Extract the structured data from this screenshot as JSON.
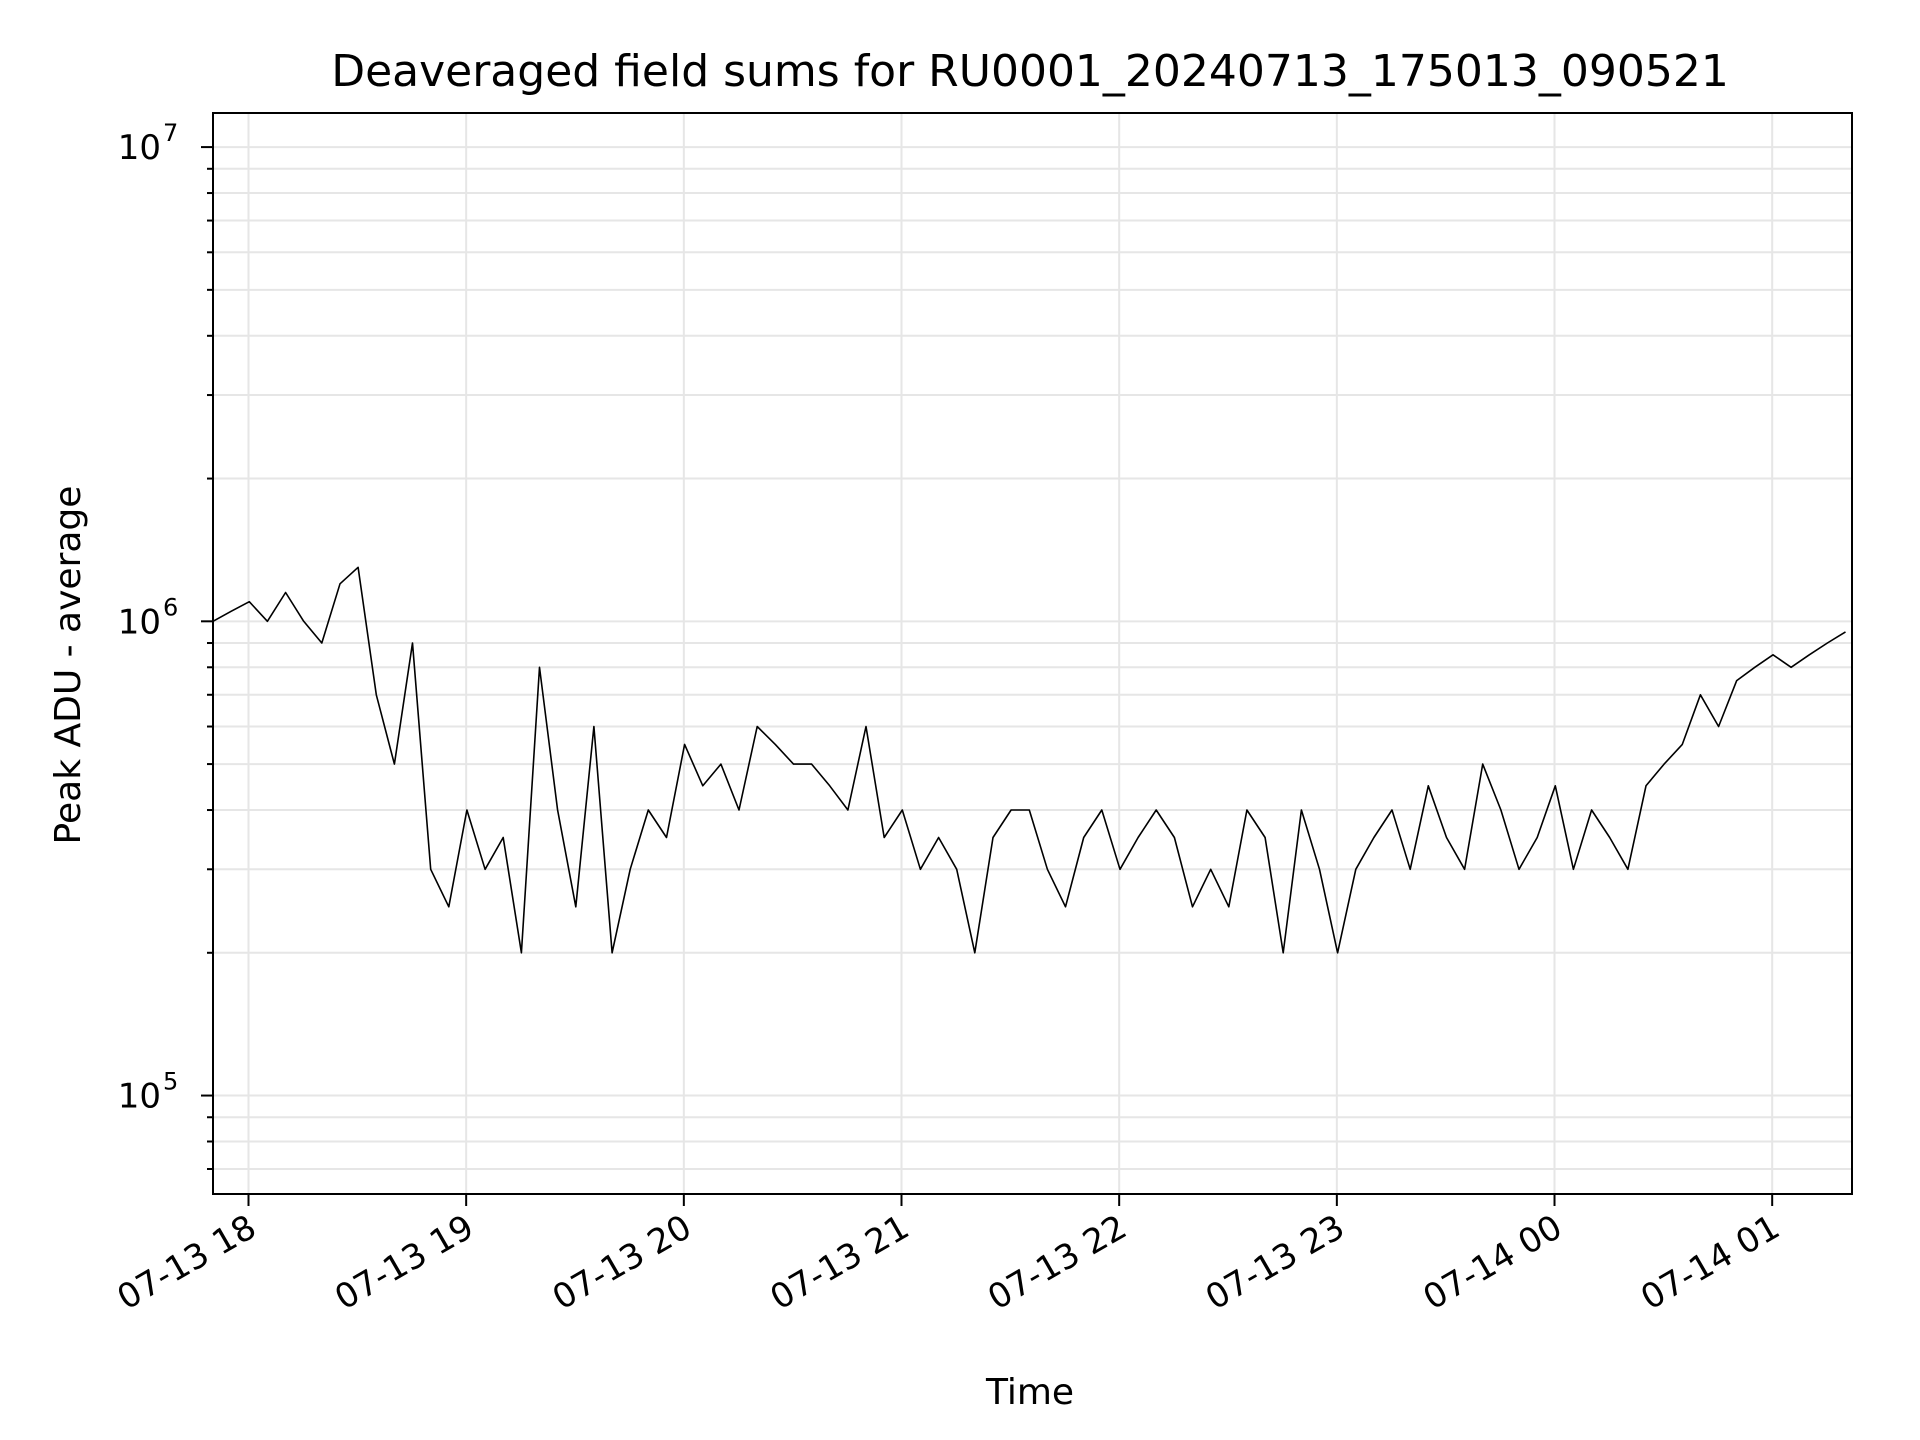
{
  "chart_data": {
    "type": "line",
    "title": "Deaveraged field sums for RU0001_20240713_175013_090521",
    "xlabel": "Time",
    "ylabel": "Peak ADU - average",
    "y_scale": "log",
    "ylim": [
      62000,
      11800000
    ],
    "xlim": [
      "2024-07-13T17:50:13",
      "2024-07-14T01:22:00"
    ],
    "x_tick_labels": [
      {
        "value": "2024-07-13T18:00:00",
        "label": "07-13 18"
      },
      {
        "value": "2024-07-13T19:00:00",
        "label": "07-13 19"
      },
      {
        "value": "2024-07-13T20:00:00",
        "label": "07-13 20"
      },
      {
        "value": "2024-07-13T21:00:00",
        "label": "07-13 21"
      },
      {
        "value": "2024-07-13T22:00:00",
        "label": "07-13 22"
      },
      {
        "value": "2024-07-13T23:00:00",
        "label": "07-13 23"
      },
      {
        "value": "2024-07-14T00:00:00",
        "label": "07-14 00"
      },
      {
        "value": "2024-07-14T01:00:00",
        "label": "07-14 01"
      }
    ],
    "y_tick_labels": [
      {
        "value": 100000,
        "base": "10",
        "exp": "5"
      },
      {
        "value": 1000000,
        "base": "10",
        "exp": "6"
      },
      {
        "value": 10000000,
        "base": "10",
        "exp": "7"
      }
    ],
    "grid": true,
    "line_color": "#000000",
    "grid_color": "#e6e6e6",
    "series": [
      {
        "sample_interval_minutes": 5,
        "x": [
          "2024-07-13T17:50:13",
          "2024-07-13T17:55:13",
          "2024-07-13T18:00:13",
          "2024-07-13T18:05:13",
          "2024-07-13T18:10:13",
          "2024-07-13T18:15:13",
          "2024-07-13T18:20:13",
          "2024-07-13T18:25:13",
          "2024-07-13T18:30:13",
          "2024-07-13T18:35:13",
          "2024-07-13T18:40:13",
          "2024-07-13T18:45:13",
          "2024-07-13T18:50:13",
          "2024-07-13T18:55:13",
          "2024-07-13T19:00:13",
          "2024-07-13T19:05:13",
          "2024-07-13T19:10:13",
          "2024-07-13T19:15:13",
          "2024-07-13T19:20:13",
          "2024-07-13T19:25:13",
          "2024-07-13T19:30:13",
          "2024-07-13T19:35:13",
          "2024-07-13T19:40:13",
          "2024-07-13T19:45:13",
          "2024-07-13T19:50:13",
          "2024-07-13T19:55:13",
          "2024-07-13T20:00:13",
          "2024-07-13T20:05:13",
          "2024-07-13T20:10:13",
          "2024-07-13T20:15:13",
          "2024-07-13T20:20:13",
          "2024-07-13T20:25:13",
          "2024-07-13T20:30:13",
          "2024-07-13T20:35:13",
          "2024-07-13T20:40:13",
          "2024-07-13T20:45:13",
          "2024-07-13T20:50:13",
          "2024-07-13T20:55:13",
          "2024-07-13T21:00:13",
          "2024-07-13T21:05:13",
          "2024-07-13T21:10:13",
          "2024-07-13T21:15:13",
          "2024-07-13T21:20:13",
          "2024-07-13T21:25:13",
          "2024-07-13T21:30:13",
          "2024-07-13T21:35:13",
          "2024-07-13T21:40:13",
          "2024-07-13T21:45:13",
          "2024-07-13T21:50:13",
          "2024-07-13T21:55:13",
          "2024-07-13T22:00:13",
          "2024-07-13T22:05:13",
          "2024-07-13T22:10:13",
          "2024-07-13T22:15:13",
          "2024-07-13T22:20:13",
          "2024-07-13T22:25:13",
          "2024-07-13T22:30:13",
          "2024-07-13T22:35:13",
          "2024-07-13T22:40:13",
          "2024-07-13T22:45:13",
          "2024-07-13T22:50:13",
          "2024-07-13T22:55:13",
          "2024-07-13T23:00:13",
          "2024-07-13T23:05:13",
          "2024-07-13T23:10:13",
          "2024-07-13T23:15:13",
          "2024-07-13T23:20:13",
          "2024-07-13T23:25:13",
          "2024-07-13T23:30:13",
          "2024-07-13T23:35:13",
          "2024-07-13T23:40:13",
          "2024-07-13T23:45:13",
          "2024-07-13T23:50:13",
          "2024-07-13T23:55:13",
          "2024-07-14T00:00:13",
          "2024-07-14T00:05:13",
          "2024-07-14T00:10:13",
          "2024-07-14T00:15:13",
          "2024-07-14T00:20:13",
          "2024-07-14T00:25:13",
          "2024-07-14T00:30:13",
          "2024-07-14T00:35:13",
          "2024-07-14T00:40:13",
          "2024-07-14T00:45:13",
          "2024-07-14T00:50:13",
          "2024-07-14T00:55:13",
          "2024-07-14T01:00:13",
          "2024-07-14T01:05:13",
          "2024-07-14T01:10:13",
          "2024-07-14T01:15:13",
          "2024-07-14T01:20:13"
        ],
        "values": [
          1000000,
          1050000,
          1100000,
          1000000,
          1150000,
          1000000,
          900000,
          1200000,
          1300000,
          700000,
          500000,
          900000,
          300000,
          250000,
          400000,
          300000,
          350000,
          200000,
          800000,
          400000,
          250000,
          600000,
          200000,
          300000,
          400000,
          350000,
          550000,
          450000,
          500000,
          400000,
          600000,
          550000,
          500000,
          500000,
          450000,
          400000,
          600000,
          350000,
          400000,
          300000,
          350000,
          300000,
          200000,
          350000,
          400000,
          400000,
          300000,
          250000,
          350000,
          400000,
          300000,
          350000,
          400000,
          350000,
          250000,
          300000,
          250000,
          400000,
          350000,
          200000,
          400000,
          300000,
          200000,
          300000,
          350000,
          400000,
          300000,
          450000,
          350000,
          300000,
          500000,
          400000,
          300000,
          350000,
          450000,
          300000,
          400000,
          350000,
          300000,
          450000,
          500000,
          550000,
          700000,
          600000,
          750000,
          800000,
          850000,
          800000,
          850000,
          900000,
          950000
        ]
      }
    ]
  }
}
